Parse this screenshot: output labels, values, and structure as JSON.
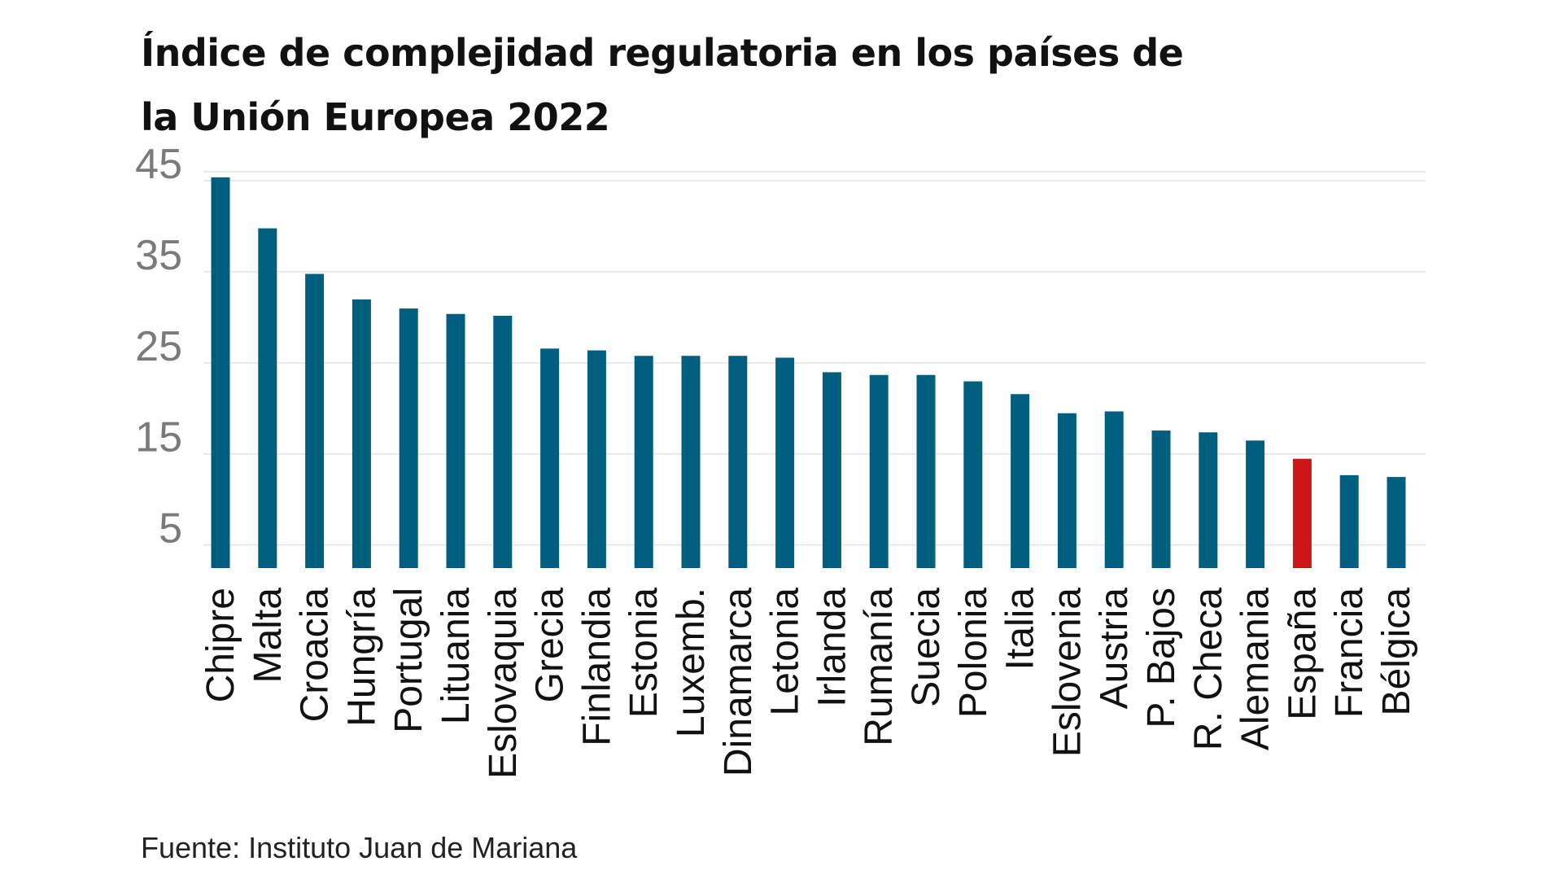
{
  "chart_data": {
    "type": "bar",
    "title_line1": "Índice de complejidad regulatoria en los países de",
    "title_line2": "la Unión Europea 2022",
    "categories": [
      "Chipre",
      "Malta",
      "Croacia",
      "Hungría",
      "Portugal",
      "Lituania",
      "Eslovaquia",
      "Grecia",
      "Finlandia",
      "Estonia",
      "Luxemb.",
      "Dinamarca",
      "Letonia",
      "Irlanda",
      "Rumanía",
      "Suecia",
      "Polonia",
      "Italia",
      "Eslovenia",
      "Austria",
      "P. Bajos",
      "R. Checa",
      "Alemania",
      "España",
      "Francia",
      "Bélgica"
    ],
    "values": [
      43.4,
      37.8,
      32.8,
      30.0,
      29.0,
      28.4,
      28.2,
      24.6,
      24.4,
      23.8,
      23.8,
      23.8,
      23.6,
      22.0,
      21.7,
      21.7,
      21.0,
      19.6,
      17.5,
      17.7,
      15.6,
      15.4,
      14.5,
      12.5,
      10.7,
      10.5
    ],
    "highlight_category": "España",
    "highlight_index": 23,
    "colors": {
      "bar": "#005f7f",
      "highlight": "#cc1719",
      "grid": "#e2e2e2",
      "tick_text": "#7a7a7a"
    },
    "yticks": [
      5,
      15,
      25,
      35,
      45
    ],
    "ylim": [
      0.5,
      45
    ],
    "xlabel": "",
    "ylabel": "",
    "grid": true,
    "legend": "none"
  },
  "source": "Fuente: Instituto Juan de Mariana"
}
